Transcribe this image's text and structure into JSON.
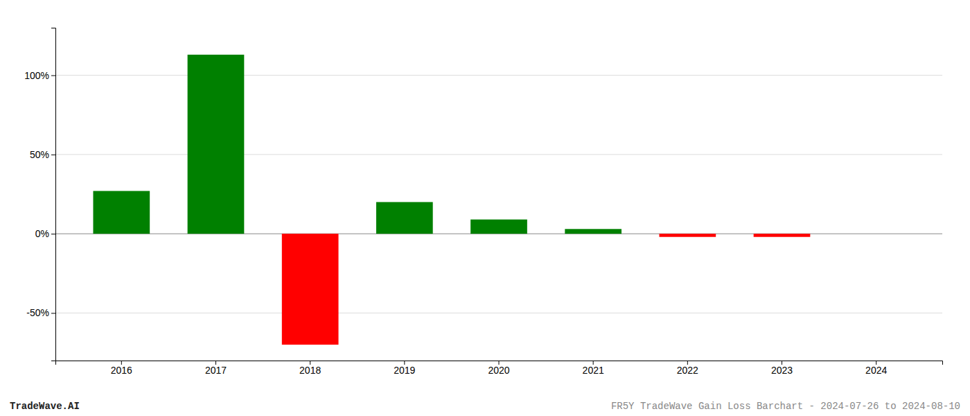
{
  "chart_data": {
    "type": "bar",
    "categories": [
      "2016",
      "2017",
      "2018",
      "2019",
      "2020",
      "2021",
      "2022",
      "2023",
      "2024"
    ],
    "values": [
      27.0,
      113.0,
      -70.0,
      20.0,
      9.0,
      3.0,
      -2.0,
      -2.0,
      0.0
    ],
    "colors": [
      "#008000",
      "#008000",
      "#ff0000",
      "#008000",
      "#008000",
      "#008000",
      "#ff0000",
      "#ff0000",
      "#008000"
    ],
    "ylim": [
      -80,
      130
    ],
    "yticks": [
      {
        "value": -50,
        "label": "-50%"
      },
      {
        "value": 0,
        "label": "0%"
      },
      {
        "value": 50,
        "label": "50%"
      },
      {
        "value": 100,
        "label": "100%"
      }
    ],
    "grid": true,
    "annotations": [
      "TradeWave.AI",
      "FR5Y TradeWave Gain Loss Barchart - 2024-07-26 to 2024-08-10"
    ]
  }
}
